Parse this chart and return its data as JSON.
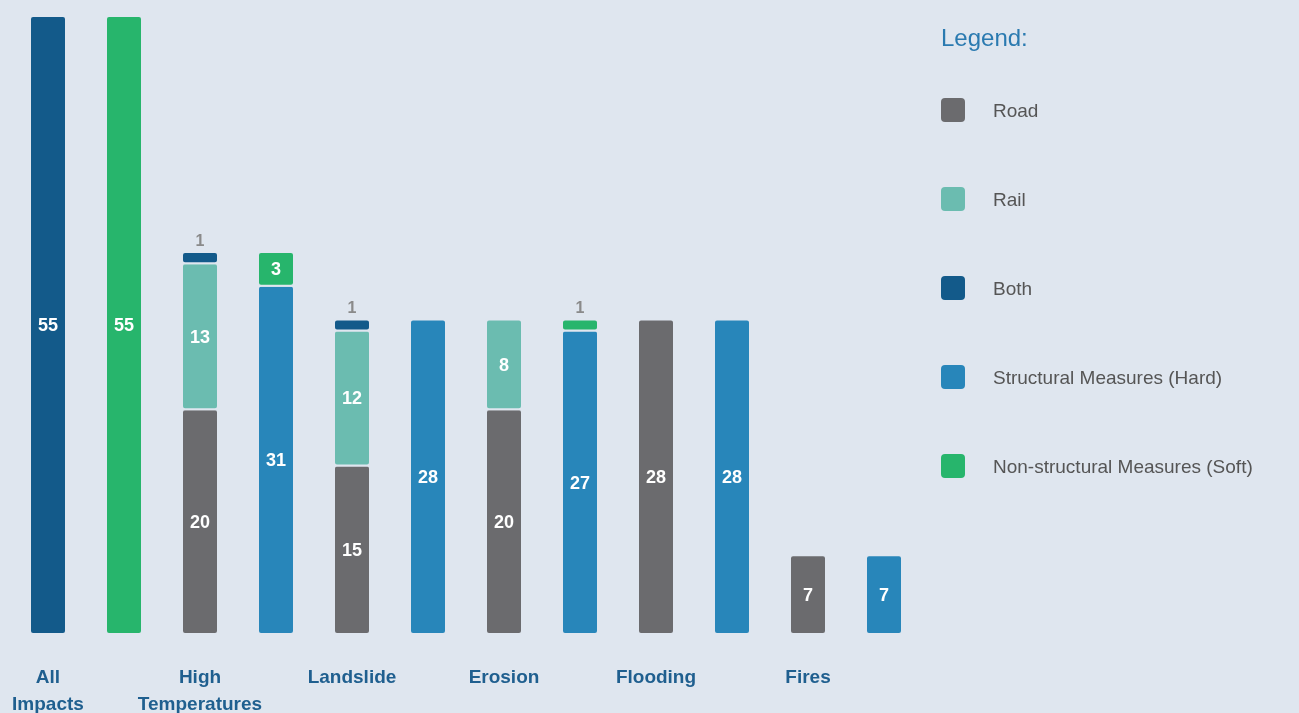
{
  "chart_data": {
    "type": "bar",
    "stacked": true,
    "data_labels": true,
    "legend": "right",
    "legend_title": "Legend:",
    "categories": [
      "All Impacts",
      null,
      "High Temperatures",
      null,
      "Landslide",
      null,
      "Erosion",
      null,
      "Flooding",
      null,
      "Fires",
      null
    ],
    "series": [
      {
        "name": "Road",
        "color": "#6b6b6e",
        "values": [
          null,
          null,
          20,
          null,
          15,
          null,
          20,
          null,
          28,
          null,
          7,
          null
        ]
      },
      {
        "name": "Rail",
        "color": "#6bbcb0",
        "values": [
          null,
          null,
          13,
          null,
          12,
          null,
          8,
          null,
          null,
          null,
          null,
          null
        ]
      },
      {
        "name": "Both",
        "color": "#135a8a",
        "values": [
          55,
          null,
          1,
          null,
          1,
          null,
          null,
          null,
          null,
          null,
          null,
          null
        ]
      },
      {
        "name": "Structural Measures (Hard)",
        "color": "#2886ba",
        "values": [
          null,
          null,
          null,
          31,
          null,
          28,
          null,
          27,
          null,
          28,
          null,
          7
        ]
      },
      {
        "name": "Non-structural Measures (Soft)",
        "color": "#27b56c",
        "values": [
          null,
          55,
          null,
          3,
          null,
          null,
          null,
          1,
          null,
          null,
          null,
          null
        ]
      }
    ]
  }
}
